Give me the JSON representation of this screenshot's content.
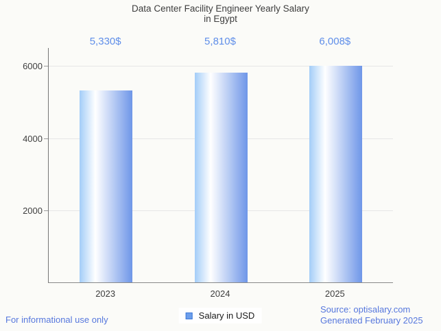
{
  "title": {
    "line1": "Data Center Facility Engineer Yearly Salary",
    "line2": "in Egypt"
  },
  "chart_data": {
    "type": "bar",
    "title": "Data Center Facility Engineer Yearly Salary in Egypt",
    "categories": [
      "2023",
      "2024",
      "2025"
    ],
    "series": [
      {
        "name": "Salary in USD",
        "values": [
          5330,
          5810,
          6008
        ]
      }
    ],
    "value_labels": [
      "5,330$",
      "5,810$",
      "6,008$"
    ],
    "xlabel": "",
    "ylabel": "",
    "ylim": [
      0,
      6500
    ],
    "yticks": [
      2000,
      4000,
      6000
    ],
    "grid": true,
    "legend_position": "bottom"
  },
  "legend": {
    "label": "Salary in USD"
  },
  "footer": {
    "left": "For informational use only",
    "source": "Source: optisalary.com",
    "generated": "Generated February 2025"
  },
  "colors": {
    "background": "#fbfbf8",
    "title_text": "#3d3d3d",
    "value_label": "#5f8ee9",
    "footer_text": "#5677dd",
    "bar_left": "#a3cdf8",
    "bar_mid": "#ffffff",
    "bar_right": "#6e96e8",
    "legend_marker_fill": "#6d9eeb",
    "legend_marker_border": "#3c78d8",
    "gridline": "#e6e6e6",
    "axis_text": "#3f3f3f"
  }
}
